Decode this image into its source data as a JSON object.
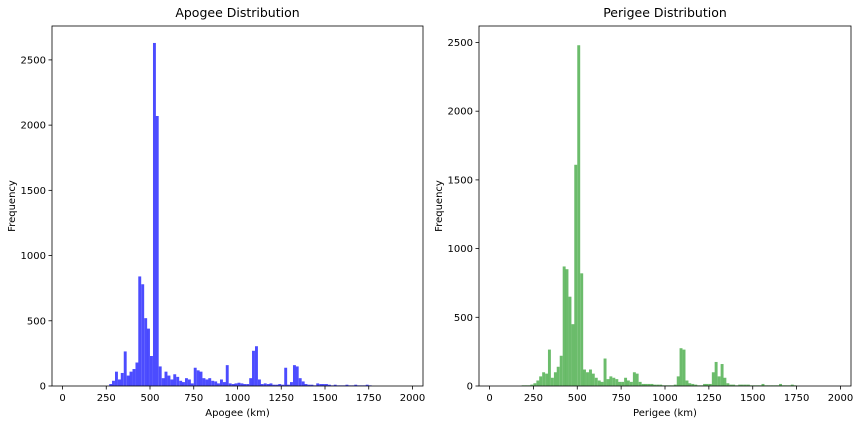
{
  "chart_data": [
    {
      "type": "bar",
      "title": "Apogee Distribution",
      "xlabel": "Apogee (km)",
      "ylabel": "Frequency",
      "color": "#0000ff",
      "bin_width": 16.67,
      "xlim": [
        -60,
        2060
      ],
      "ylim": [
        0,
        2760
      ],
      "xticks": [
        0,
        250,
        500,
        750,
        1000,
        1250,
        1500,
        1750,
        2000
      ],
      "xtick_labels": [
        "0",
        "250",
        "500",
        "750",
        "1000",
        "1250",
        "1500",
        "1750",
        "2000"
      ],
      "yticks": [
        0,
        500,
        1000,
        1500,
        2000,
        2500
      ],
      "ytick_labels": [
        "0",
        "500",
        "1000",
        "1500",
        "2000",
        "2500"
      ],
      "grid": false,
      "bins": [
        [
          267,
          15
        ],
        [
          283,
          40
        ],
        [
          300,
          110
        ],
        [
          317,
          50
        ],
        [
          333,
          100
        ],
        [
          350,
          265
        ],
        [
          367,
          80
        ],
        [
          383,
          110
        ],
        [
          400,
          130
        ],
        [
          417,
          180
        ],
        [
          433,
          840
        ],
        [
          450,
          780
        ],
        [
          467,
          520
        ],
        [
          483,
          440
        ],
        [
          500,
          230
        ],
        [
          517,
          2630
        ],
        [
          533,
          2070
        ],
        [
          550,
          150
        ],
        [
          567,
          60
        ],
        [
          583,
          110
        ],
        [
          600,
          80
        ],
        [
          617,
          50
        ],
        [
          633,
          90
        ],
        [
          650,
          70
        ],
        [
          667,
          40
        ],
        [
          683,
          30
        ],
        [
          700,
          60
        ],
        [
          717,
          50
        ],
        [
          733,
          20
        ],
        [
          750,
          140
        ],
        [
          767,
          120
        ],
        [
          783,
          110
        ],
        [
          800,
          60
        ],
        [
          817,
          50
        ],
        [
          833,
          60
        ],
        [
          850,
          40
        ],
        [
          867,
          35
        ],
        [
          883,
          20
        ],
        [
          900,
          50
        ],
        [
          917,
          30
        ],
        [
          933,
          160
        ],
        [
          950,
          20
        ],
        [
          967,
          15
        ],
        [
          983,
          20
        ],
        [
          1000,
          25
        ],
        [
          1017,
          20
        ],
        [
          1033,
          15
        ],
        [
          1050,
          15
        ],
        [
          1067,
          60
        ],
        [
          1083,
          270
        ],
        [
          1100,
          305
        ],
        [
          1117,
          50
        ],
        [
          1133,
          15
        ],
        [
          1150,
          20
        ],
        [
          1167,
          15
        ],
        [
          1183,
          20
        ],
        [
          1200,
          10
        ],
        [
          1217,
          10
        ],
        [
          1233,
          15
        ],
        [
          1250,
          10
        ],
        [
          1267,
          140
        ],
        [
          1283,
          10
        ],
        [
          1300,
          30
        ],
        [
          1317,
          160
        ],
        [
          1333,
          150
        ],
        [
          1350,
          60
        ],
        [
          1367,
          35
        ],
        [
          1383,
          15
        ],
        [
          1400,
          10
        ],
        [
          1417,
          10
        ],
        [
          1433,
          5
        ],
        [
          1450,
          20
        ],
        [
          1467,
          15
        ],
        [
          1483,
          15
        ],
        [
          1500,
          15
        ],
        [
          1517,
          10
        ],
        [
          1533,
          5
        ],
        [
          1550,
          10
        ],
        [
          1567,
          5
        ],
        [
          1583,
          5
        ],
        [
          1600,
          5
        ],
        [
          1617,
          10
        ],
        [
          1633,
          5
        ],
        [
          1650,
          5
        ],
        [
          1667,
          10
        ],
        [
          1683,
          5
        ],
        [
          1700,
          5
        ],
        [
          1717,
          5
        ],
        [
          1733,
          10
        ],
        [
          1750,
          5
        ]
      ]
    },
    {
      "type": "bar",
      "title": "Perigee Distribution",
      "xlabel": "Perigee (km)",
      "ylabel": "Frequency",
      "color": "#2ca02c",
      "bin_width": 16.67,
      "xlim": [
        -60,
        2060
      ],
      "ylim": [
        0,
        2620
      ],
      "xticks": [
        0,
        250,
        500,
        750,
        1000,
        1250,
        1500,
        1750,
        2000
      ],
      "xtick_labels": [
        "0",
        "250",
        "500",
        "750",
        "1000",
        "1250",
        "1500",
        "1750",
        "2000"
      ],
      "yticks": [
        0,
        500,
        1000,
        1500,
        2000,
        2500
      ],
      "ytick_labels": [
        "0",
        "500",
        "1000",
        "1500",
        "2000",
        "2500"
      ],
      "grid": false,
      "bins": [
        [
          183,
          5
        ],
        [
          200,
          5
        ],
        [
          217,
          5
        ],
        [
          233,
          10
        ],
        [
          250,
          20
        ],
        [
          267,
          40
        ],
        [
          283,
          70
        ],
        [
          300,
          100
        ],
        [
          317,
          90
        ],
        [
          333,
          265
        ],
        [
          350,
          60
        ],
        [
          367,
          100
        ],
        [
          383,
          140
        ],
        [
          400,
          220
        ],
        [
          417,
          870
        ],
        [
          433,
          850
        ],
        [
          450,
          650
        ],
        [
          467,
          450
        ],
        [
          483,
          1610
        ],
        [
          500,
          2480
        ],
        [
          517,
          820
        ],
        [
          533,
          120
        ],
        [
          550,
          100
        ],
        [
          567,
          120
        ],
        [
          583,
          90
        ],
        [
          600,
          60
        ],
        [
          617,
          40
        ],
        [
          633,
          30
        ],
        [
          650,
          200
        ],
        [
          667,
          50
        ],
        [
          683,
          70
        ],
        [
          700,
          60
        ],
        [
          717,
          50
        ],
        [
          733,
          30
        ],
        [
          750,
          30
        ],
        [
          767,
          60
        ],
        [
          783,
          40
        ],
        [
          800,
          30
        ],
        [
          817,
          100
        ],
        [
          833,
          90
        ],
        [
          850,
          30
        ],
        [
          867,
          15
        ],
        [
          883,
          15
        ],
        [
          900,
          15
        ],
        [
          917,
          15
        ],
        [
          933,
          10
        ],
        [
          950,
          10
        ],
        [
          967,
          10
        ],
        [
          983,
          5
        ],
        [
          1000,
          5
        ],
        [
          1017,
          5
        ],
        [
          1033,
          5
        ],
        [
          1050,
          10
        ],
        [
          1067,
          70
        ],
        [
          1083,
          275
        ],
        [
          1100,
          265
        ],
        [
          1117,
          40
        ],
        [
          1133,
          20
        ],
        [
          1150,
          15
        ],
        [
          1167,
          10
        ],
        [
          1183,
          5
        ],
        [
          1200,
          5
        ],
        [
          1217,
          15
        ],
        [
          1233,
          15
        ],
        [
          1250,
          15
        ],
        [
          1267,
          100
        ],
        [
          1283,
          175
        ],
        [
          1300,
          70
        ],
        [
          1317,
          160
        ],
        [
          1333,
          60
        ],
        [
          1350,
          20
        ],
        [
          1367,
          10
        ],
        [
          1383,
          10
        ],
        [
          1400,
          5
        ],
        [
          1417,
          10
        ],
        [
          1433,
          10
        ],
        [
          1450,
          10
        ],
        [
          1467,
          10
        ],
        [
          1483,
          5
        ],
        [
          1500,
          5
        ],
        [
          1517,
          5
        ],
        [
          1533,
          5
        ],
        [
          1550,
          15
        ],
        [
          1567,
          5
        ],
        [
          1583,
          5
        ],
        [
          1600,
          5
        ],
        [
          1617,
          5
        ],
        [
          1633,
          5
        ],
        [
          1650,
          15
        ],
        [
          1667,
          5
        ],
        [
          1683,
          5
        ],
        [
          1700,
          5
        ],
        [
          1717,
          10
        ],
        [
          1733,
          5
        ]
      ]
    }
  ]
}
